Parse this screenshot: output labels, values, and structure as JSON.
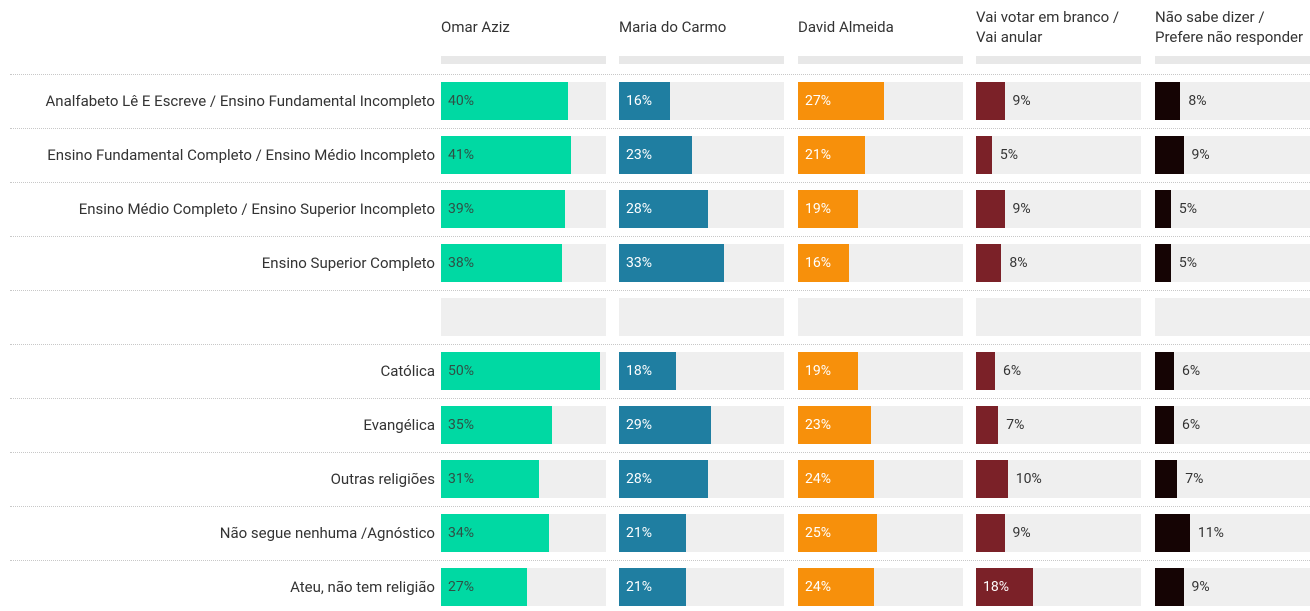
{
  "chart_data": {
    "type": "bar",
    "categories": [
      "Analfabeto Lê E Escreve / Ensino Fundamental Incompleto",
      "Ensino Fundamental Completo / Ensino Médio Incompleto",
      "Ensino Médio Completo / Ensino Superior Incompleto",
      "Ensino Superior Completo",
      null,
      "Católica",
      "Evangélica",
      "Outras religiões",
      "Não segue nenhuma /Agnóstico",
      "Ateu, não tem religião"
    ],
    "ylim": [
      0,
      52
    ],
    "series": [
      {
        "name": "Omar Aziz",
        "color": "#00d9a3",
        "values": [
          40,
          41,
          39,
          38,
          null,
          50,
          35,
          31,
          34,
          27
        ],
        "value_labels": [
          "40%",
          "41%",
          "39%",
          "38%",
          null,
          "50%",
          "35%",
          "31%",
          "34%",
          "27%"
        ]
      },
      {
        "name": "Maria do Carmo",
        "color": "#1f7ea1",
        "values": [
          16,
          23,
          28,
          33,
          null,
          18,
          29,
          28,
          21,
          21
        ],
        "value_labels": [
          "16%",
          "23%",
          "28%",
          "33%",
          null,
          "18%",
          "29%",
          "28%",
          "21%",
          "21%"
        ]
      },
      {
        "name": "David Almeida",
        "color": "#f7900b",
        "values": [
          27,
          21,
          19,
          16,
          null,
          19,
          23,
          24,
          25,
          24
        ],
        "value_labels": [
          "27%",
          "21%",
          "19%",
          "16%",
          null,
          "19%",
          "23%",
          "24%",
          "25%",
          "24%"
        ]
      },
      {
        "name": "Vai votar em branco /\nVai anular",
        "color": "#7b2128",
        "values": [
          9,
          5,
          9,
          8,
          null,
          6,
          7,
          10,
          9,
          18
        ],
        "value_labels": [
          "9%",
          "5%",
          "9%",
          "8%",
          null,
          "6%",
          "7%",
          "10%",
          "9%",
          "18%"
        ]
      },
      {
        "name": "Não sabe dizer /\nPrefere não responder",
        "color": "#150404",
        "values": [
          8,
          9,
          5,
          5,
          null,
          6,
          6,
          7,
          11,
          9
        ],
        "value_labels": [
          "8%",
          "9%",
          "5%",
          "5%",
          null,
          "6%",
          "6%",
          "7%",
          "11%",
          "9%"
        ]
      }
    ]
  }
}
